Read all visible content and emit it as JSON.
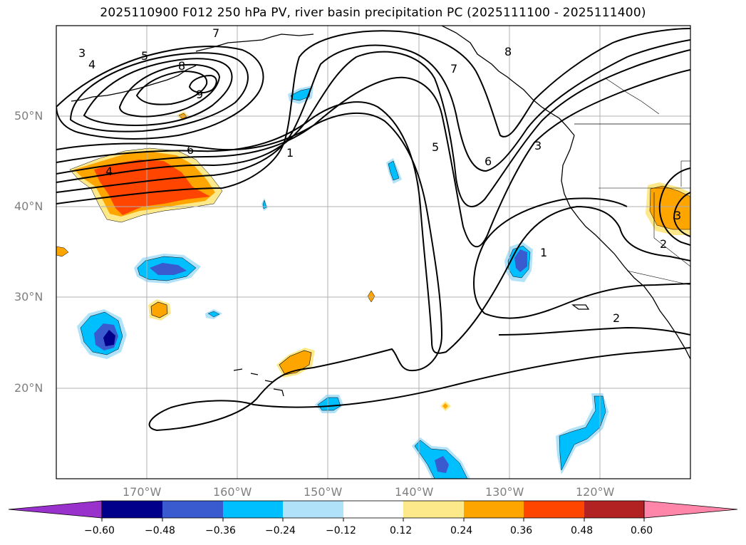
{
  "title": "2025110900 F012 250 hPa PV, river basin precipitation PC (2025111100 - 2025111400)",
  "chart_data": {
    "type": "contour_map",
    "title": "2025110900 F012 250 hPa PV, river basin precipitation PC (2025111100 - 2025111400)",
    "projection": "PlateCarree",
    "extent": {
      "lon": [
        -180,
        -110
      ],
      "lat": [
        10,
        60
      ]
    },
    "grid": true,
    "lon_ticks": [
      -170,
      -160,
      -150,
      -140,
      -130,
      -120
    ],
    "lon_tick_labels": [
      "170°W",
      "160°W",
      "150°W",
      "140°W",
      "130°W",
      "120°W"
    ],
    "lat_ticks": [
      20,
      30,
      40,
      50
    ],
    "lat_tick_labels": [
      "20°N",
      "30°N",
      "40°N",
      "50°N"
    ],
    "pv_contours": {
      "levels": [
        1,
        2,
        3,
        4,
        5,
        6,
        7,
        8,
        9
      ],
      "color": "#000000",
      "labels": [
        {
          "text": "3",
          "lon": -177,
          "lat": 56.8
        },
        {
          "text": "4",
          "lon": -176,
          "lat": 55.8
        },
        {
          "text": "5",
          "lon": -170,
          "lat": 56.7
        },
        {
          "text": "8",
          "lon": -166,
          "lat": 54.8
        },
        {
          "text": "9",
          "lon": -164,
          "lat": 52.3
        },
        {
          "text": "6",
          "lon": -165,
          "lat": 45.3
        },
        {
          "text": "4",
          "lon": -174,
          "lat": 42.3
        },
        {
          "text": "1",
          "lon": -154,
          "lat": 45.0
        },
        {
          "text": "7",
          "lon": -158,
          "lat": 59.0
        },
        {
          "text": "5",
          "lon": -135,
          "lat": 45.6
        },
        {
          "text": "6",
          "lon": -131,
          "lat": 43.7
        },
        {
          "text": "7",
          "lon": -136,
          "lat": 54.5
        },
        {
          "text": "8",
          "lon": -128.5,
          "lat": 57.7
        },
        {
          "text": "3",
          "lon": -124,
          "lat": 46.0
        },
        {
          "text": "1",
          "lon": -126.5,
          "lat": 35.5
        },
        {
          "text": "2",
          "lon": -118,
          "lat": 28.2
        },
        {
          "text": "3",
          "lon": -112.6,
          "lat": 39.0
        },
        {
          "text": "2",
          "lon": -113.2,
          "lat": 36.1
        }
      ]
    },
    "precip_pc_shading": {
      "levels": [
        -0.6,
        -0.48,
        -0.36,
        -0.24,
        -0.12,
        0.12,
        0.24,
        0.36,
        0.48,
        0.6
      ],
      "colors": [
        "#9932cc",
        "#00008b",
        "#3a5ad0",
        "#00bfff",
        "#b0e2fa",
        "#ffffff",
        "#fde88a",
        "#ffa500",
        "#ff4500",
        "#b22222",
        "#ff85a9"
      ],
      "extend": "both"
    },
    "colorbar": {
      "orientation": "horizontal",
      "tick_labels": [
        "−0.60",
        "−0.48",
        "−0.36",
        "−0.24",
        "−0.12",
        "0.12",
        "0.24",
        "0.36",
        "0.48",
        "0.60"
      ]
    }
  }
}
